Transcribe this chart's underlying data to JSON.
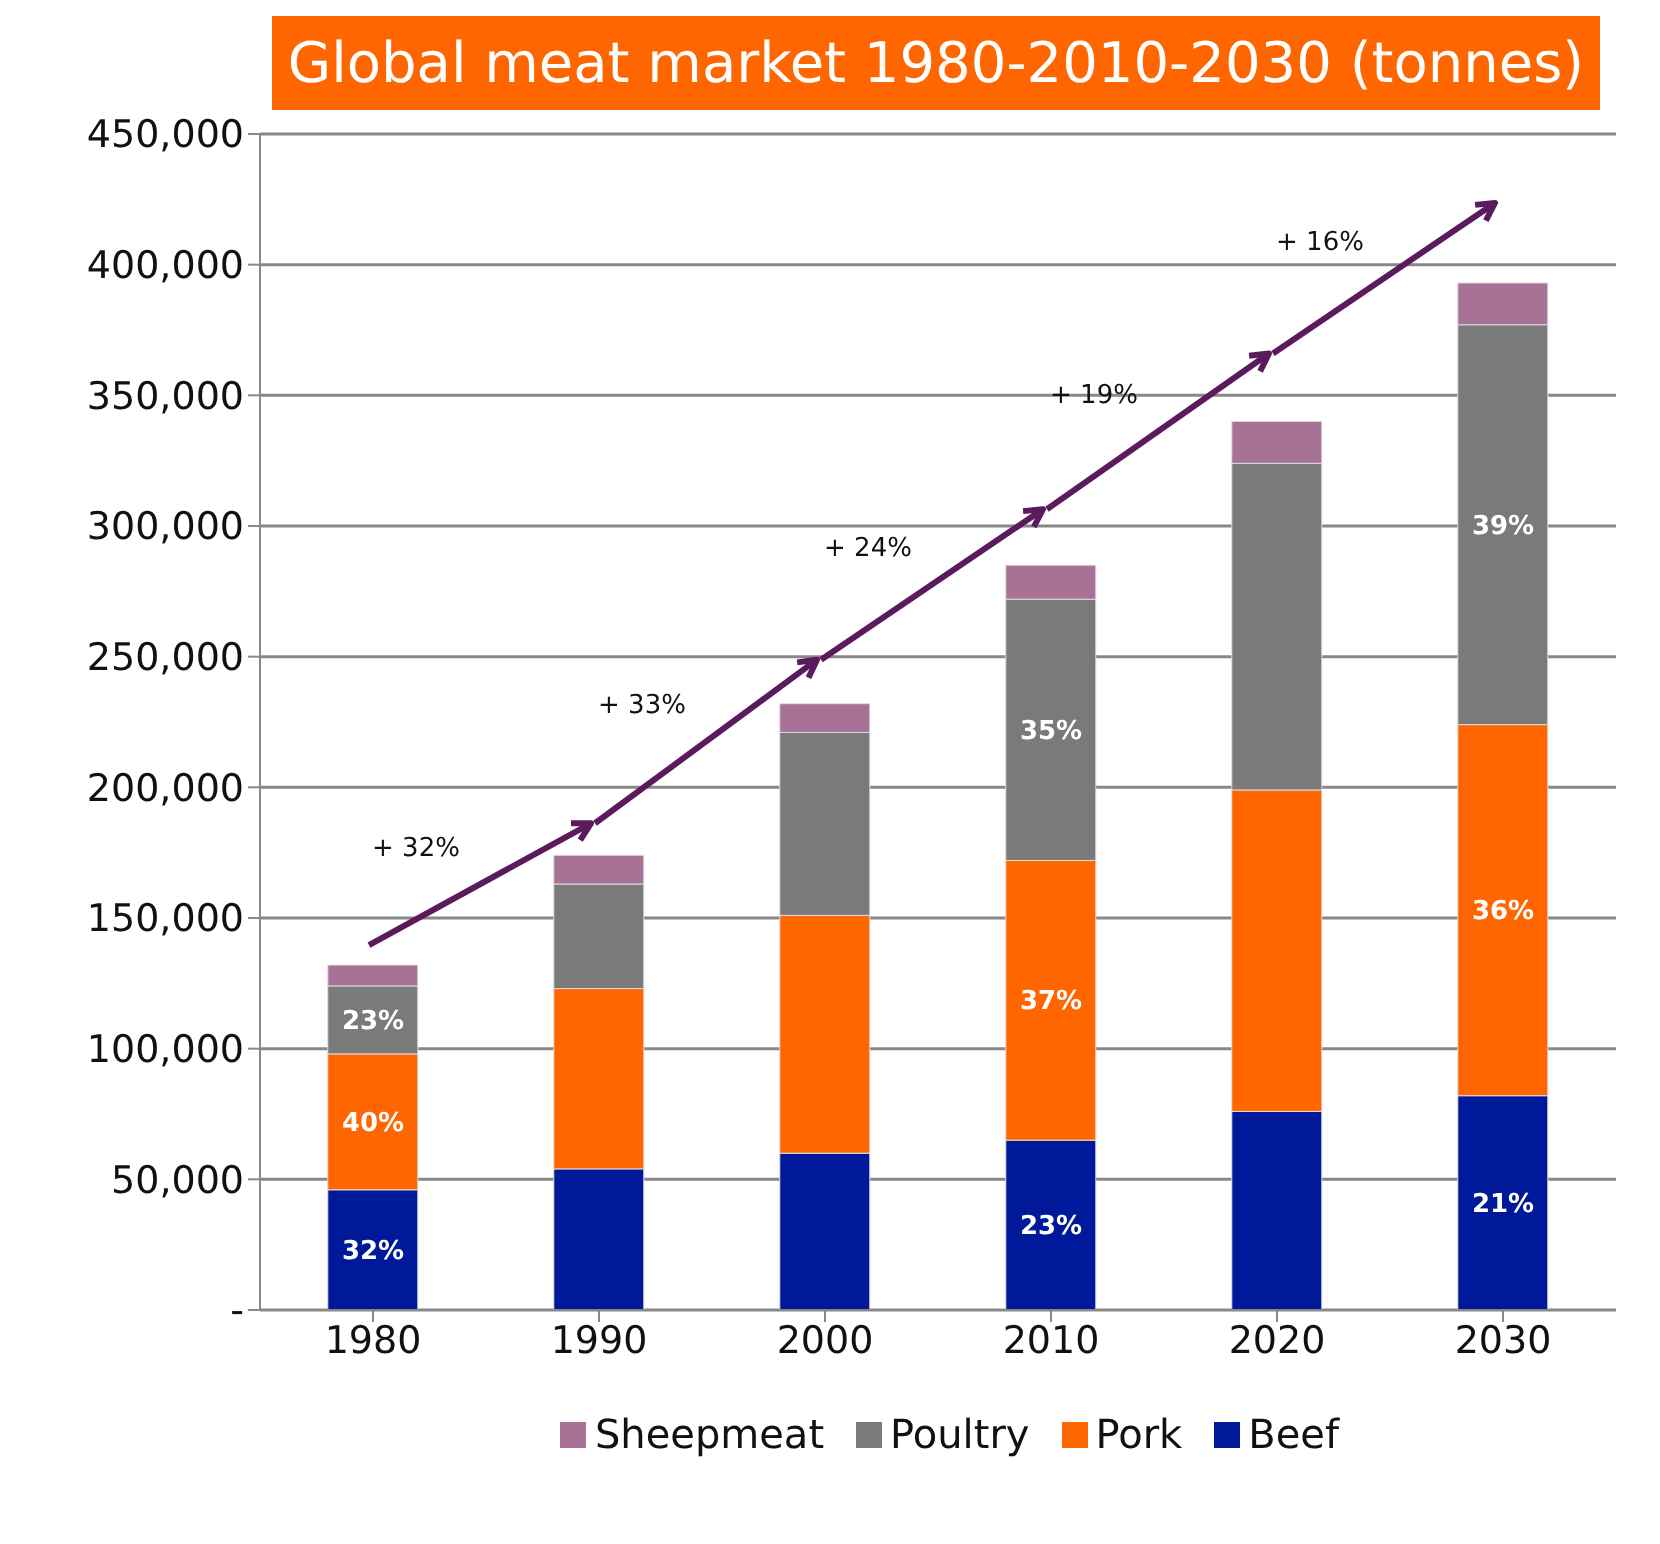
{
  "chart_data": {
    "type": "bar",
    "title": "Global meat market 1980-2010-2030 (tonnes)",
    "stacked": true,
    "categories": [
      "1980",
      "1990",
      "2000",
      "2010",
      "2020",
      "2030"
    ],
    "series": [
      {
        "name": "Beef",
        "color": "#00189a",
        "values": [
          46000,
          54000,
          60000,
          65000,
          76000,
          82000
        ]
      },
      {
        "name": "Pork",
        "color": "#ff6600",
        "values": [
          52000,
          69000,
          91000,
          107000,
          123000,
          142000
        ]
      },
      {
        "name": "Poultry",
        "color": "#7a7a7a",
        "values": [
          26000,
          40000,
          70000,
          100000,
          125000,
          153000
        ]
      },
      {
        "name": "Sheepmeat",
        "color": "#a87196",
        "values": [
          8000,
          11000,
          11000,
          13000,
          16000,
          16000
        ]
      }
    ],
    "ylim": [
      0,
      450000
    ],
    "yticks": [
      {
        "value": 0,
        "label": "-"
      },
      {
        "value": 50000,
        "label": "50,000"
      },
      {
        "value": 100000,
        "label": "100,000"
      },
      {
        "value": 150000,
        "label": "150,000"
      },
      {
        "value": 200000,
        "label": "200,000"
      },
      {
        "value": 250000,
        "label": "250,000"
      },
      {
        "value": 300000,
        "label": "300,000"
      },
      {
        "value": 350000,
        "label": "350,000"
      },
      {
        "value": 400000,
        "label": "400,000"
      },
      {
        "value": 450000,
        "label": "450,000"
      }
    ],
    "grid": "y",
    "legend": "bottom",
    "annotations": [
      "+ 32%",
      "+ 33%",
      "+ 24%",
      "+ 19%",
      "+ 16%",
      "32%",
      "40%",
      "23%",
      "23%",
      "37%",
      "35%",
      "21%",
      "36%",
      "39%"
    ]
  }
}
